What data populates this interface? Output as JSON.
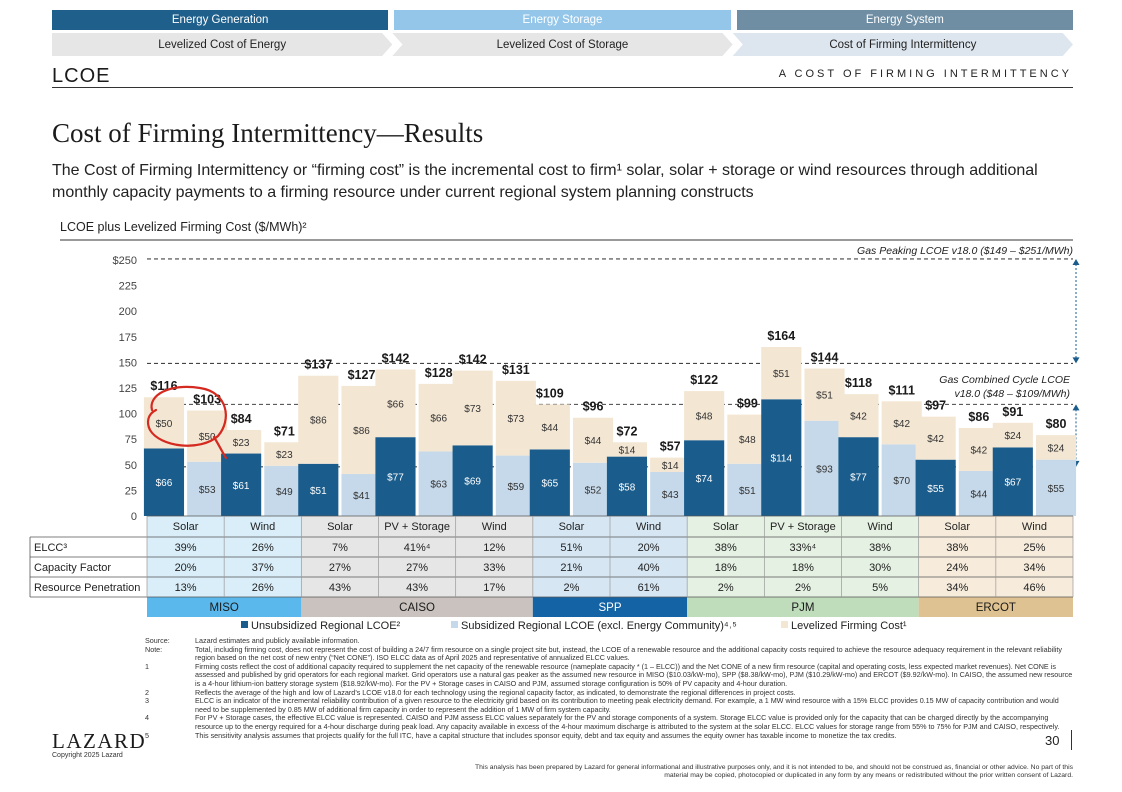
{
  "nav": {
    "tabs": [
      "Energy Generation",
      "Energy Storage",
      "Energy System"
    ],
    "tab_colors": [
      "#1f5f8b",
      "#94c6ea",
      "#6f8ea4"
    ],
    "chevrons": [
      "Levelized Cost of Energy",
      "Levelized Cost of Storage",
      "Cost of Firming Intermittency"
    ]
  },
  "header": {
    "logo": "LCOE",
    "section_label": "A   COST OF FIRMING INTERMITTENCY"
  },
  "page": {
    "title": "Cost of Firming Intermittency—Results",
    "subtitle": "The Cost of Firming Intermittency or “firming cost” is the incremental cost to firm¹ solar, solar + storage or wind resources through additional monthly capacity payments to a firming resource under current regional system planning constructs",
    "chart_label": "LCOE plus Levelized Firming Cost ($/MWh)²"
  },
  "chart_data": {
    "type": "bar",
    "stacked": true,
    "ylim": [
      0,
      250
    ],
    "yticks": [
      "$250",
      "225",
      "200",
      "175",
      "150",
      "125",
      "100",
      "75",
      "50",
      "25",
      "0"
    ],
    "series": [
      {
        "name": "Unsubsidized Regional LCOE²",
        "color": "#1a5c8c",
        "values": [
          66,
          null,
          61,
          null,
          51,
          null,
          77,
          null,
          69,
          null,
          65,
          null,
          58,
          null,
          74,
          null,
          114,
          null,
          77,
          null,
          55,
          null,
          67,
          null
        ]
      },
      {
        "name": "Subsidized Regional LCOE (excl. Energy Community)⁴˒⁵",
        "color": "#c6d9ea",
        "values": [
          null,
          53,
          null,
          49,
          null,
          41,
          null,
          63,
          null,
          59,
          null,
          52,
          null,
          43,
          null,
          51,
          null,
          93,
          null,
          70,
          null,
          44,
          null,
          55
        ]
      },
      {
        "name": "Levelized Firming Cost¹",
        "color": "#f3e6d3",
        "values": [
          50,
          50,
          23,
          23,
          86,
          86,
          66,
          66,
          73,
          73,
          44,
          44,
          14,
          14,
          48,
          48,
          51,
          51,
          42,
          42,
          42,
          42,
          24,
          24
        ]
      }
    ],
    "totals": [
      "$116",
      "$103",
      "$84",
      "$71",
      "$137",
      "$127",
      "$142",
      "$128",
      "$142",
      "$131",
      "$109",
      "$96",
      "$72",
      "$57",
      "$122",
      "$99",
      "$164",
      "$144",
      "$118",
      "$111",
      "$97",
      "$86",
      "$91",
      "$80"
    ],
    "base_labels": [
      "$66",
      "$53",
      "$61",
      "$49",
      "$51",
      "$41",
      "$77",
      "$63",
      "$69",
      "$59",
      "$65",
      "$52",
      "$58",
      "$43",
      "$74",
      "$51",
      "$114",
      "$93",
      "$77",
      "$70",
      "$55",
      "$44",
      "$67",
      "$55"
    ],
    "firm_labels": [
      "$50",
      "$50",
      "$23",
      "$23",
      "$86",
      "$86",
      "$66",
      "$66",
      "$73",
      "$73",
      "$44",
      "$44",
      "$14",
      "$14",
      "$48",
      "$48",
      "$51",
      "$51",
      "$42",
      "$42",
      "$42",
      "$42",
      "$24",
      "$24"
    ],
    "reference_lines": [
      {
        "label": "Gas Peaking LCOE v18.0 ($149 – $251/MWh)",
        "low": 149,
        "high": 251
      },
      {
        "label": "Gas Combined Cycle LCOE v18.0 ($48 – $109/MWh)",
        "low": 48,
        "high": 109
      }
    ],
    "annotation": "hand-drawn red circle around MISO Solar firming cost labels"
  },
  "table": {
    "row_labels": [
      "ELCC³",
      "Capacity Factor",
      "Resource Penetration"
    ],
    "resources": [
      "Solar",
      "Wind",
      "Solar",
      "PV + Storage",
      "Wind",
      "Solar",
      "Wind",
      "Solar",
      "PV + Storage",
      "Wind",
      "Solar",
      "Wind"
    ],
    "elcc": [
      "39%",
      "26%",
      "7%",
      "41%⁴",
      "12%",
      "51%",
      "20%",
      "38%",
      "33%⁴",
      "38%",
      "38%",
      "25%"
    ],
    "capacity_factor": [
      "20%",
      "37%",
      "27%",
      "27%",
      "33%",
      "21%",
      "40%",
      "18%",
      "18%",
      "30%",
      "24%",
      "34%"
    ],
    "penetration": [
      "13%",
      "26%",
      "43%",
      "43%",
      "17%",
      "2%",
      "61%",
      "2%",
      "2%",
      "5%",
      "34%",
      "46%"
    ],
    "regions": [
      {
        "name": "MISO",
        "span": 2,
        "bg": "#d9eef9",
        "bar": "#5bb8ec",
        "text": "#1a1a1a"
      },
      {
        "name": "CAISO",
        "span": 3,
        "bg": "#e6e6e6",
        "bar": "#c9c2bf",
        "text": "#1a1a1a"
      },
      {
        "name": "SPP",
        "span": 2,
        "bg": "#d6e6f3",
        "bar": "#1463a5",
        "text": "#ffffff"
      },
      {
        "name": "PJM",
        "span": 3,
        "bg": "#e5f1e2",
        "bar": "#bfdcbb",
        "text": "#1a1a1a"
      },
      {
        "name": "ERCOT",
        "span": 2,
        "bg": "#f7ecdc",
        "bar": "#dfc291",
        "text": "#1a1a1a"
      }
    ]
  },
  "footnotes": [
    {
      "k": "Source:",
      "v": "Lazard estimates and publicly available information."
    },
    {
      "k": "Note:",
      "v": "Total, including firming cost, does not represent the cost of building a 24/7 firm resource on a single project site but, instead, the LCOE of a renewable resource and the additional capacity costs required to achieve the resource adequacy requirement in the relevant reliability region based on the net cost of new entry (“Net CONE”). ISO ELCC data as of April 2025 and representative of annualized ELCC values."
    },
    {
      "k": "1",
      "v": "Firming costs reflect the cost of additional capacity required to supplement the net capacity of the renewable resource (nameplate capacity * (1 – ELCC)) and the Net CONE of a new firm resource (capital and operating costs, less expected market revenues). Net CONE is assessed and published by grid operators for each regional market. Grid operators use a natural gas peaker as the assumed new resource in MISO ($10.03/kW-mo), SPP ($8.38/kW-mo), PJM ($10.29/kW-mo) and ERCOT ($9.92/kW-mo). In CAISO, the assumed new resource is a 4-hour lithium-ion battery storage system ($18.92/kW-mo). For the PV + Storage cases in CAISO and PJM, assumed storage configuration is 50% of PV capacity and 4-hour duration."
    },
    {
      "k": "2",
      "v": "Reflects the average of the high and low of Lazard’s LCOE v18.0 for each technology using the regional capacity factor, as indicated, to demonstrate the regional differences in project costs."
    },
    {
      "k": "3",
      "v": "ELCC is an indicator of the incremental reliability contribution of a given resource to the electricity grid based on its contribution to meeting peak electricity demand. For example, a 1 MW wind resource with a 15% ELCC provides 0.15 MW of capacity contribution and would need to be supplemented by 0.85 MW of additional firm capacity in order to represent the addition of 1 MW of firm system capacity."
    },
    {
      "k": "4",
      "v": "For PV + Storage cases, the effective ELCC value is represented. CAISO and PJM assess ELCC values separately for the PV and storage components of a system. Storage ELCC value is provided only for the capacity that can be charged directly by the accompanying resource up to the energy required for a 4-hour discharge during peak load. Any capacity available in excess of the 4-hour maximum discharge is attributed to the system at the solar ELCC. ELCC values for storage range from 55% to 75% for PJM and CAISO, respectively."
    },
    {
      "k": "5",
      "v": "This sensitivity analysis assumes that projects qualify for the full ITC, have a capital structure that includes sponsor equity, debt and tax equity and assumes the equity owner has taxable income to monetize the tax credits."
    }
  ],
  "footer": {
    "brand": "LAZARD",
    "copyright": "Copyright 2025 Lazard",
    "page_number": "30",
    "disclaimer": "This analysis has been prepared by Lazard for general informational and illustrative purposes only, and it is not intended to be, and should not be construed as, financial or other advice. No part of this material may be copied, photocopied or duplicated in any form by any means or redistributed without the prior written consent of Lazard."
  }
}
